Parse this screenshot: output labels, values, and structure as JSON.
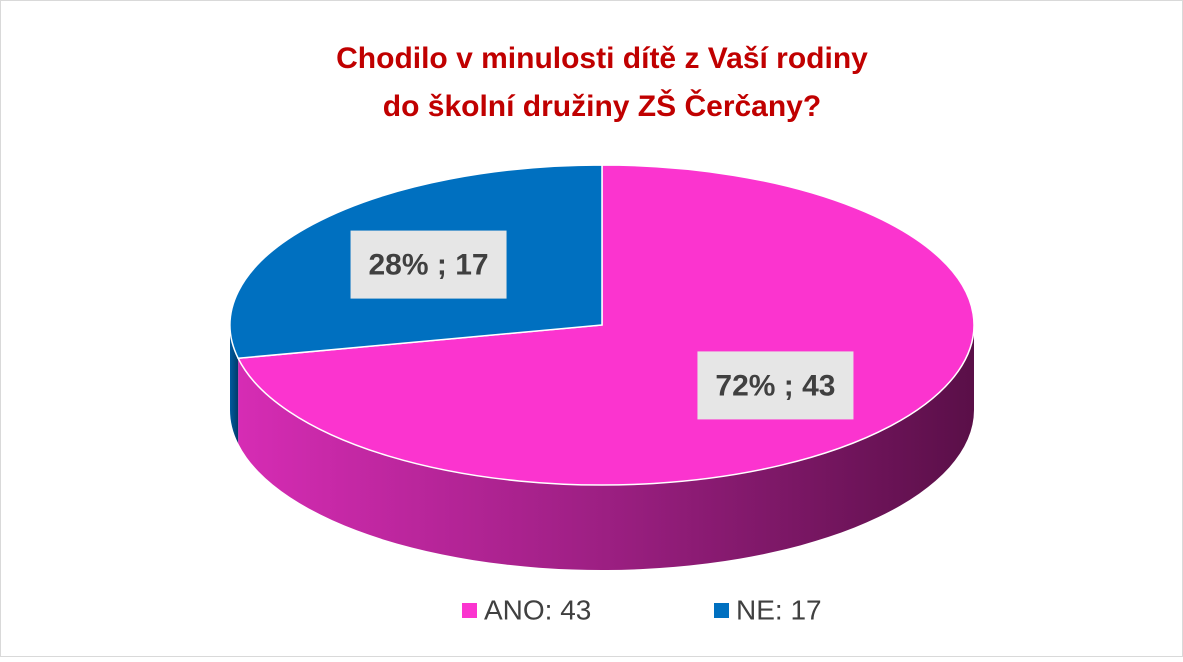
{
  "chart_data": {
    "type": "pie3d",
    "title": [
      "Chodilo v minulosti dítě z Vaší rodiny",
      "do školní družiny ZŠ Čerčany?"
    ],
    "categories": [
      "ANO: 43",
      "NE: 17"
    ],
    "values": [
      43,
      17
    ],
    "value_labels": [
      "72% ; 43",
      "28% ; 17"
    ],
    "colors": [
      "#fb34cf",
      "#0070c0"
    ],
    "legend": "bottom"
  }
}
